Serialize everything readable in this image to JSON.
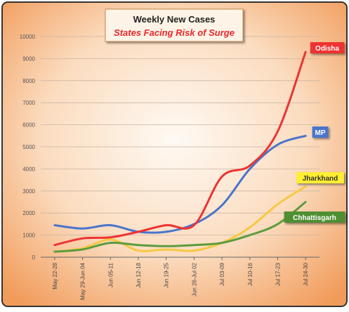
{
  "chart_data": {
    "type": "line",
    "title": "Weekly New Cases",
    "subtitle": "States Facing Risk of Surge",
    "xlabel": "",
    "ylabel": "",
    "ylim": [
      0,
      10000
    ],
    "yticks": [
      0,
      1000,
      2000,
      3000,
      4000,
      5000,
      6000,
      7000,
      8000,
      9000,
      10000
    ],
    "grid": true,
    "legend": "inline labels at line ends",
    "categories": [
      "May 22-28",
      "May 29-Jun 04",
      "Jun 05-11",
      "Jun 12-18",
      "Jun 19-25",
      "Jun 26-Jul 02",
      "Jul 03-09",
      "Jul 10-16",
      "Jul 17-23",
      "Jul 24-30"
    ],
    "series": [
      {
        "name": "Odisha",
        "color": "#ee3333",
        "label_bg": "#ee3333",
        "label_color": "#ffffff",
        "values": [
          550,
          850,
          900,
          1150,
          1450,
          1450,
          3650,
          4150,
          5700,
          9300
        ]
      },
      {
        "name": "MP",
        "color": "#4a74cc",
        "label_bg": "#4a74cc",
        "label_color": "#ffffff",
        "values": [
          1450,
          1300,
          1450,
          1150,
          1150,
          1500,
          2350,
          4000,
          5100,
          5500
        ]
      },
      {
        "name": "Jharkhand",
        "color": "#f7c842",
        "label_bg": "#ffee33",
        "label_color": "#333333",
        "values": [
          250,
          400,
          800,
          300,
          350,
          300,
          650,
          1350,
          2400,
          3200
        ]
      },
      {
        "name": "Chhattisgarh",
        "color": "#5c9c3e",
        "label_bg": "#4f8f33",
        "label_color": "#ffffff",
        "values": [
          250,
          350,
          650,
          550,
          500,
          550,
          650,
          1000,
          1500,
          2500
        ]
      }
    ]
  }
}
